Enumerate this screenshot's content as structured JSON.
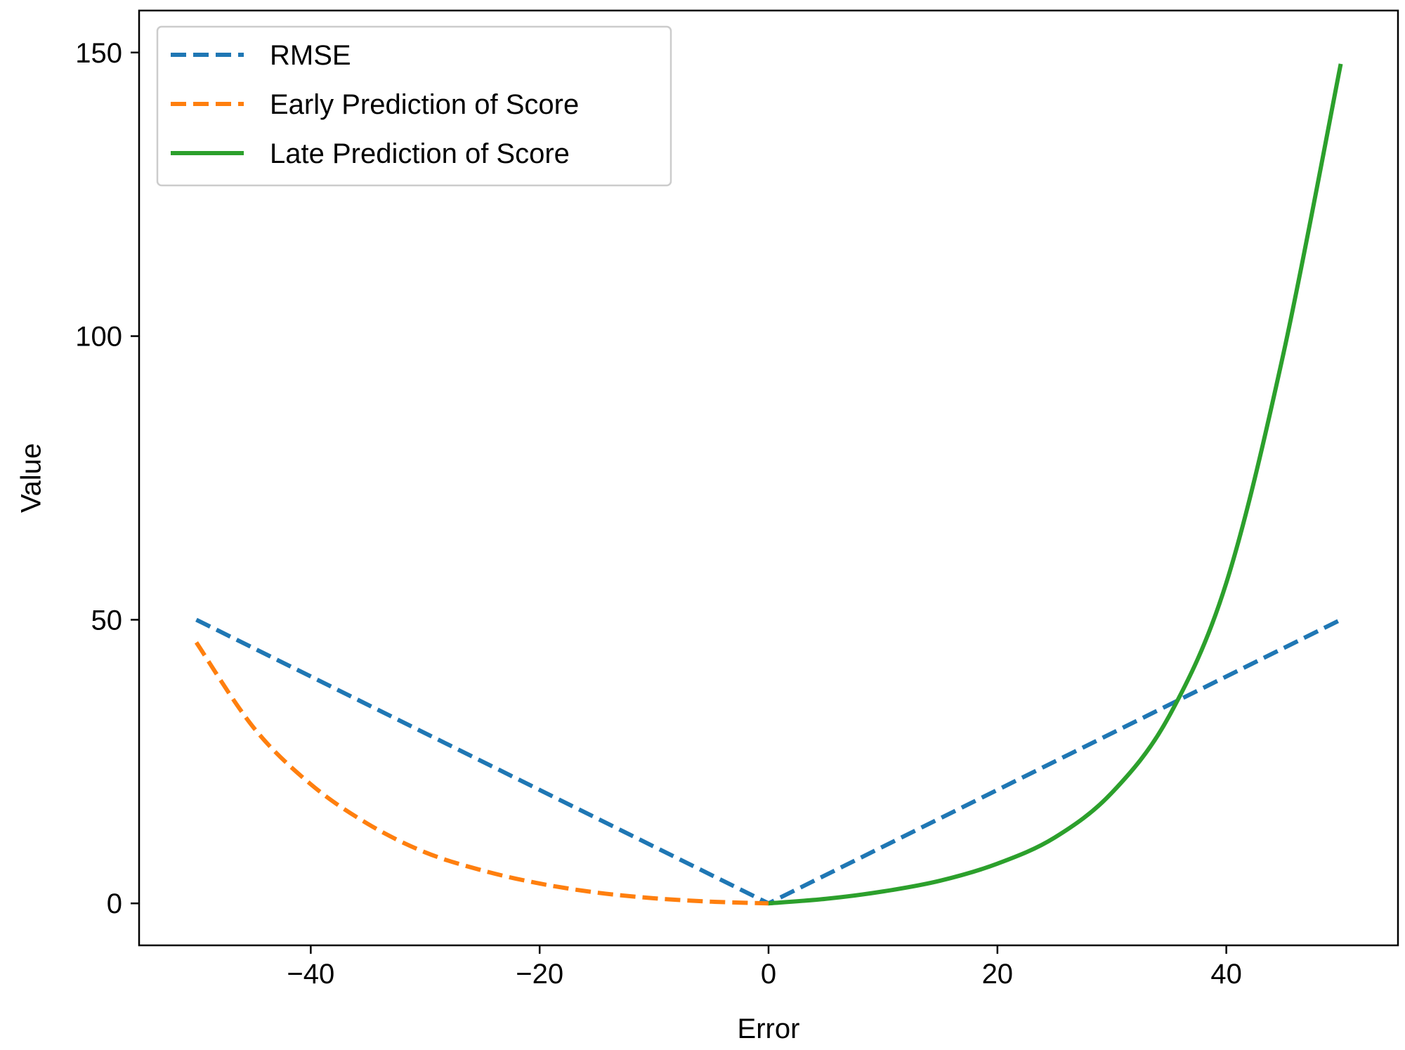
{
  "chart_data": {
    "type": "line",
    "title": "",
    "xlabel": "Error",
    "ylabel": "Value",
    "xlim": [
      -55,
      55
    ],
    "ylim": [
      -7.4,
      157.4
    ],
    "xticks": [
      -40,
      -20,
      0,
      20,
      40
    ],
    "xtick_labels": [
      "−40",
      "−20",
      "0",
      "20",
      "40"
    ],
    "yticks": [
      0,
      50,
      100,
      150
    ],
    "ytick_labels": [
      "0",
      "50",
      "100",
      "150"
    ],
    "grid": false,
    "legend": {
      "position": "top-left"
    },
    "series": [
      {
        "name": "RMSE",
        "color": "#1f77b4",
        "style": "dashed",
        "x": [
          -50,
          0,
          50
        ],
        "y": [
          50,
          0,
          50
        ]
      },
      {
        "name": "Early Prediction of Score",
        "color": "#ff7f0e",
        "style": "dashed",
        "x": [
          -50,
          -45,
          -40,
          -35,
          -30,
          -25,
          -20,
          -15,
          -10,
          -5,
          0
        ],
        "y": [
          46,
          31,
          21,
          14,
          9,
          5.8,
          3.5,
          1.9,
          0.9,
          0.3,
          0
        ]
      },
      {
        "name": "Late Prediction of Score",
        "color": "#2ca02c",
        "style": "solid",
        "x": [
          0,
          5,
          10,
          15,
          20,
          25,
          30,
          35,
          40,
          45,
          50
        ],
        "y": [
          0,
          0.8,
          2.1,
          4,
          7,
          11.6,
          19.5,
          33,
          56.5,
          97,
          148
        ]
      }
    ]
  }
}
